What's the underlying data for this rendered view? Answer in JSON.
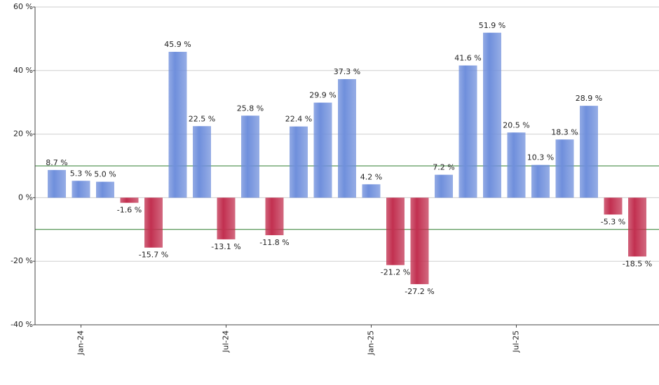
{
  "chart_data": {
    "type": "bar",
    "categories": [
      null,
      "Jan-24",
      null,
      null,
      null,
      null,
      null,
      "Jul-24",
      null,
      null,
      null,
      null,
      null,
      "Jan-25",
      null,
      null,
      null,
      null,
      null,
      "Jul-25",
      null,
      null,
      null,
      null,
      null
    ],
    "values": [
      8.7,
      5.3,
      5.0,
      -1.6,
      -15.7,
      45.9,
      22.5,
      -13.1,
      25.8,
      -11.8,
      22.4,
      29.9,
      37.3,
      4.2,
      -21.2,
      -27.2,
      7.2,
      41.6,
      51.9,
      20.5,
      10.3,
      18.3,
      28.9,
      -5.3,
      -18.5
    ],
    "value_labels": [
      "8.7 %",
      "5.3 %",
      "5.0 %",
      "-1.6 %",
      "-15.7 %",
      "45.9 %",
      "22.5 %",
      "-13.1 %",
      "25.8 %",
      "-11.8 %",
      "22.4 %",
      "29.9 %",
      "37.3 %",
      "4.2 %",
      "-21.2 %",
      "-27.2 %",
      "7.2 %",
      "41.6 %",
      "51.9 %",
      "20.5 %",
      "10.3 %",
      "18.3 %",
      "28.9 %",
      "-5.3 %",
      "-18.5 %"
    ],
    "positive_color": "#6f8fdc",
    "negative_color": "#c23050",
    "ylim": [
      -40,
      60
    ],
    "yticks": [
      {
        "value": -40,
        "label": "-40 %"
      },
      {
        "value": -20,
        "label": "-20 %"
      },
      {
        "value": 0,
        "label": "0 %"
      },
      {
        "value": 20,
        "label": "20 %"
      },
      {
        "value": 40,
        "label": "40 %"
      },
      {
        "value": 60,
        "label": "60 %"
      }
    ],
    "grid": true,
    "reference_lines": [
      10,
      -10
    ],
    "reference_color": "#2e7d2e"
  }
}
